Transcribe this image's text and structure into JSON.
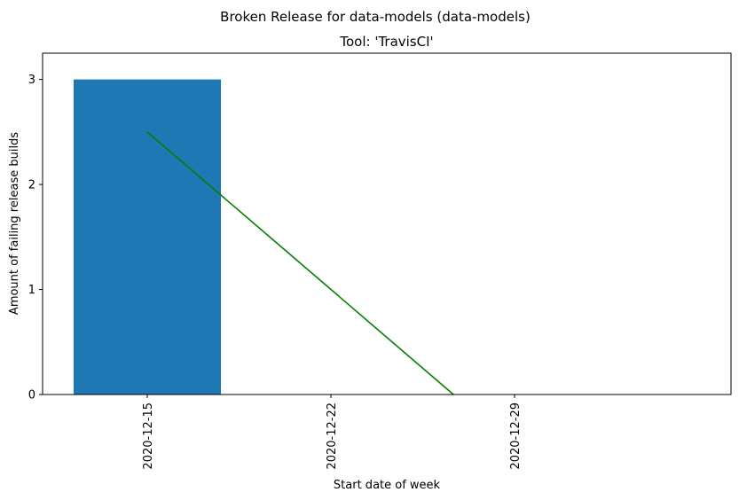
{
  "chart_data": {
    "type": "bar",
    "suptitle": "Broken Release for data-models (data-models)",
    "title": "Tool: 'TravisCI'",
    "xlabel": "Start date of week",
    "ylabel": "Amount of failing release builds",
    "categories": [
      "2020-12-15",
      "2020-12-22",
      "2020-12-29"
    ],
    "series": [
      {
        "type": "bar",
        "values": [
          3,
          0,
          0
        ]
      },
      {
        "type": "line",
        "x": [
          0,
          1.667
        ],
        "y": [
          2.5,
          0
        ]
      }
    ],
    "ylim": [
      0,
      3.25
    ],
    "yticks": [
      0,
      1,
      2,
      3
    ],
    "grid": false,
    "colors": {
      "bar": "#1f77b4",
      "line": "#008000"
    }
  }
}
